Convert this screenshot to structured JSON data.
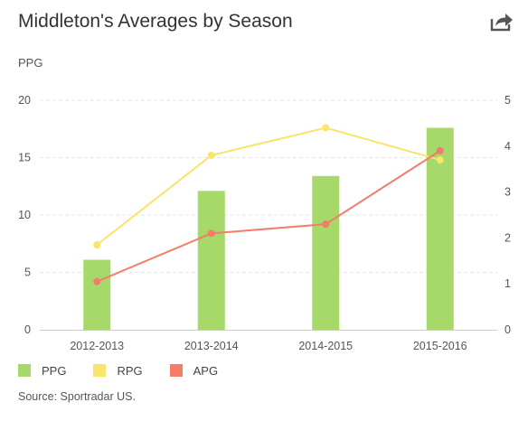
{
  "title": "Middleton's Averages by Season",
  "y_axis_label": "PPG",
  "source": "Source: Sportradar US.",
  "icons": {
    "share": "share-icon"
  },
  "chart_data": {
    "type": "bar",
    "title": "Middleton's Averages by Season",
    "ylabel": "PPG",
    "categories": [
      "2012-2013",
      "2013-2014",
      "2014-2015",
      "2015-2016"
    ],
    "left_axis": {
      "ticks": [
        "0",
        "5",
        "10",
        "15",
        "20"
      ],
      "ylim": [
        0,
        20
      ]
    },
    "right_axis": {
      "ticks": [
        "0",
        "1",
        "2",
        "3",
        "4",
        "5"
      ],
      "ylim": [
        0,
        5
      ]
    },
    "grid": true,
    "legend_position": "bottom-left",
    "series": [
      {
        "name": "PPG",
        "type": "bar",
        "axis": "left",
        "color": "#a6d96a",
        "values": [
          6.1,
          12.1,
          13.4,
          17.6
        ]
      },
      {
        "name": "RPG",
        "type": "line",
        "axis": "right",
        "color": "#f9e46c",
        "values": [
          1.85,
          3.8,
          4.4,
          3.7
        ]
      },
      {
        "name": "APG",
        "type": "line",
        "axis": "right",
        "color": "#f47c68",
        "values": [
          1.05,
          2.1,
          2.3,
          3.9
        ]
      }
    ]
  }
}
